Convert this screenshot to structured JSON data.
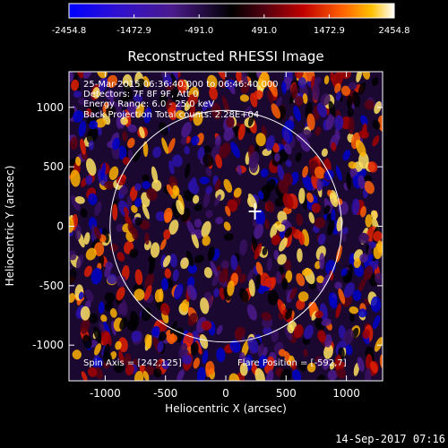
{
  "chart_data": {
    "type": "heatmap",
    "title": "Reconstructed RHESSI Image",
    "xlabel": "Heliocentric X (arcsec)",
    "ylabel": "Heliocentric Y (arcsec)",
    "xlim": [
      -1300,
      1300
    ],
    "ylim": [
      -1300,
      1300
    ],
    "x_ticks": [
      -1000,
      -500,
      0,
      500,
      1000
    ],
    "y_ticks": [
      -1000,
      -500,
      0,
      500,
      1000
    ],
    "colorbar": {
      "min": -2454.8,
      "max": 2454.8,
      "tick_labels": [
        "-2454.8",
        "-1472.9",
        "-491.0",
        "491.0",
        "1472.9",
        "2454.8"
      ]
    },
    "annotations": [
      "25-Mar-2015 06:36:40.000 to 06:46:40.000",
      "Detectors: 7F 8F 9F, Att 0",
      "Energy Range: 6.0 - 25.0 keV",
      "Back Projection    Total counts: 2.28E+04"
    ],
    "spin_axis_label": "Spin Axis = [242,125]",
    "flare_position_label": "Flare Position = [-592,7]",
    "flare_marker": [
      242,
      125
    ],
    "solar_disk_radius": 960,
    "timestamp": "14-Sep-2017 07:16"
  },
  "colors": {
    "background": "#000000",
    "foreground": "#ffffff",
    "negative_max": "#0000ff",
    "positive_max": "#ffffff"
  }
}
